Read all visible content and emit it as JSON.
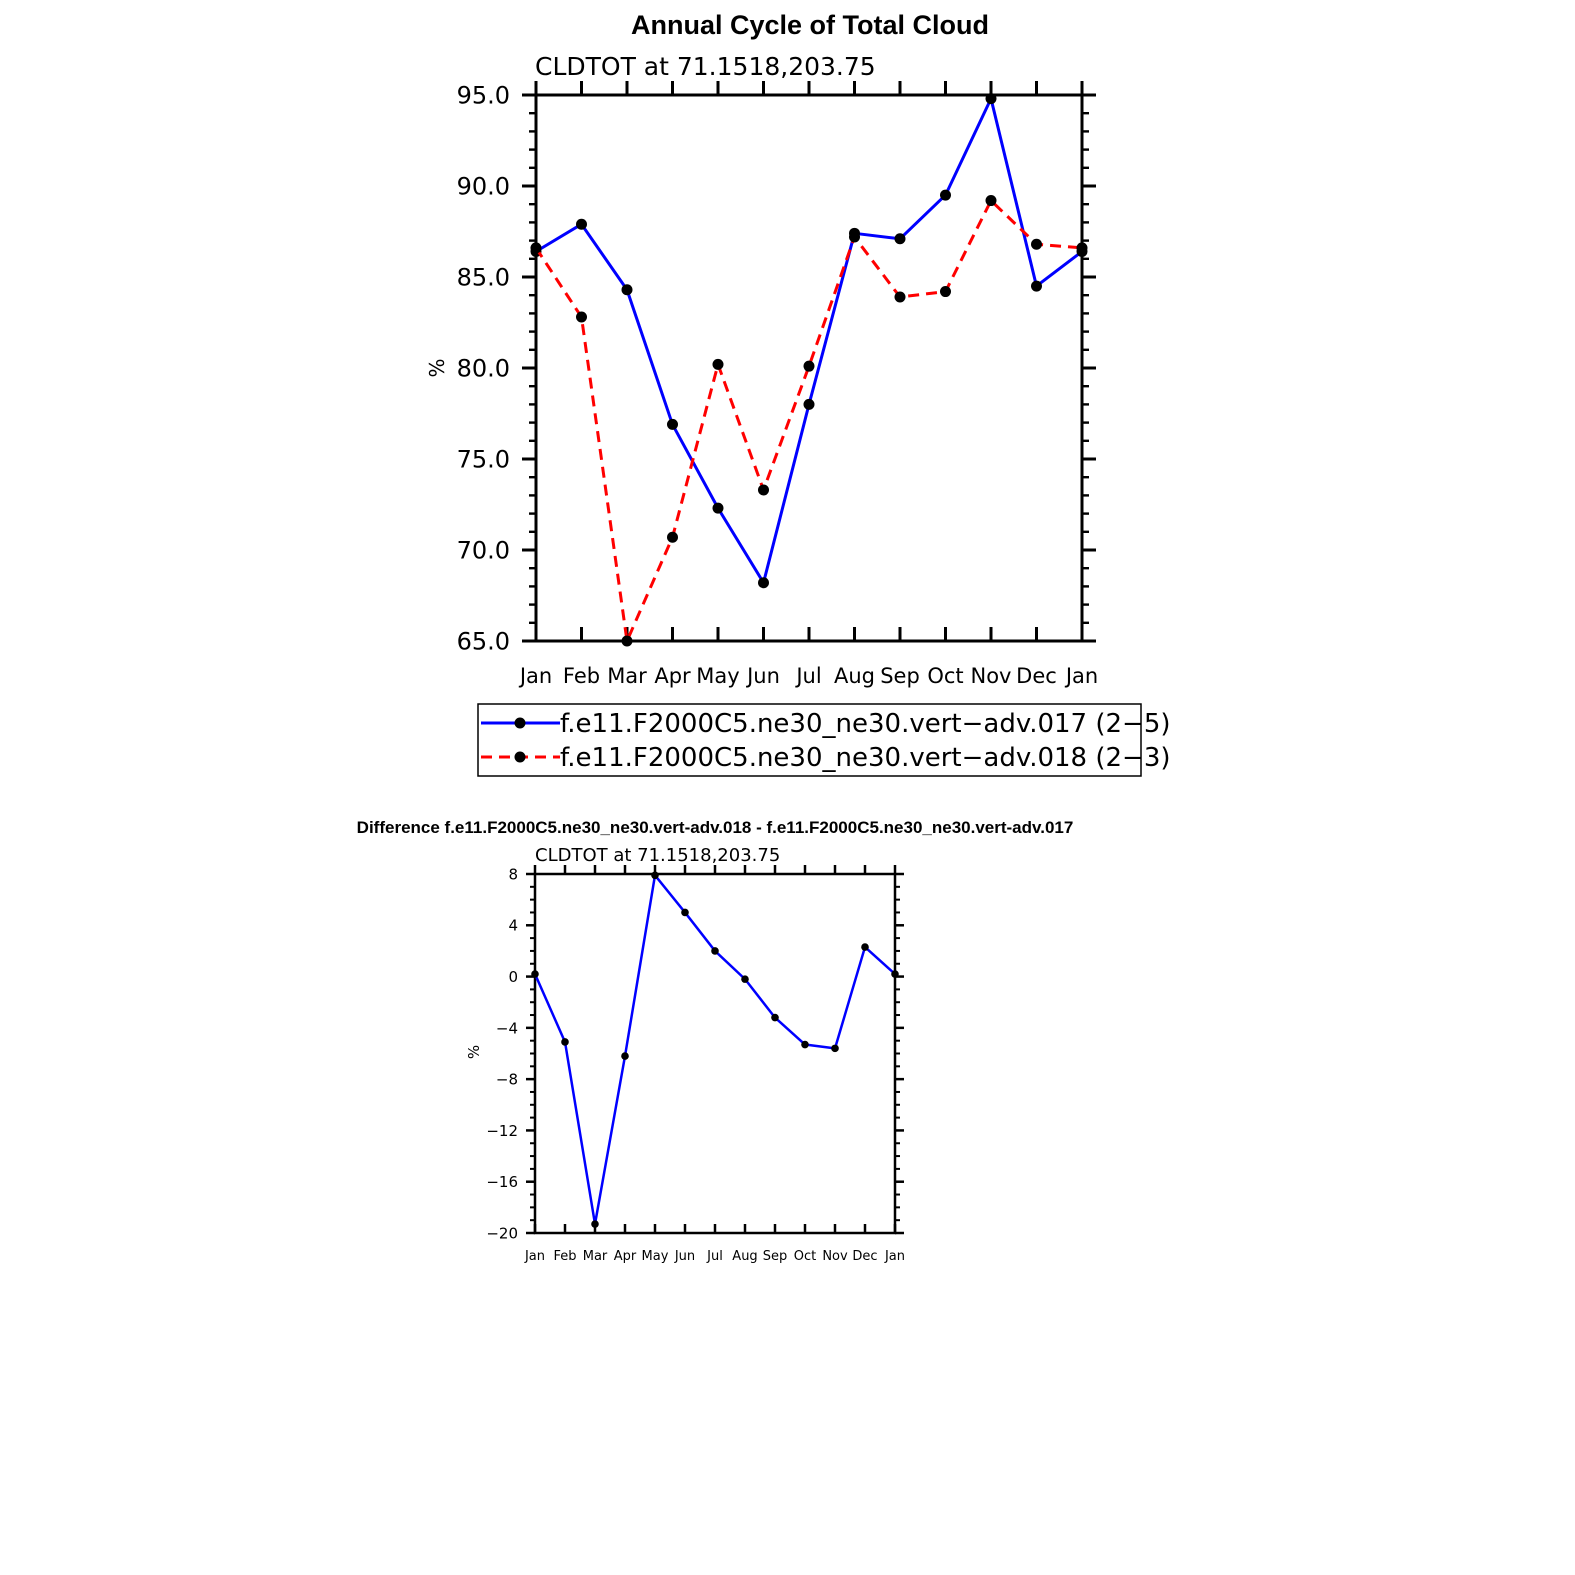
{
  "chart_data": [
    {
      "type": "line",
      "title": "Annual Cycle of Total Cloud",
      "subtitle": "CLDTOT at 71.1518,203.75",
      "xlabel": "",
      "ylabel": "%",
      "categories": [
        "Jan",
        "Feb",
        "Mar",
        "Apr",
        "May",
        "Jun",
        "Jul",
        "Aug",
        "Sep",
        "Oct",
        "Nov",
        "Dec",
        "Jan"
      ],
      "ylim": [
        65,
        95
      ],
      "yticks": [
        "65.0",
        "70.0",
        "75.0",
        "80.0",
        "85.0",
        "90.0",
        "95.0"
      ],
      "grid": false,
      "legend_position": "bottom",
      "series": [
        {
          "name": "f.e11.F2000C5.ne30_ne30.vert−adv.017 (2−5)",
          "color": "#0000ff",
          "dash": "solid",
          "values": [
            86.4,
            87.9,
            84.3,
            76.9,
            72.3,
            68.2,
            78.0,
            87.4,
            87.1,
            89.5,
            94.8,
            84.5,
            86.4
          ]
        },
        {
          "name": "f.e11.F2000C5.ne30_ne30.vert−adv.018 (2−3)",
          "color": "#ff0000",
          "dash": "dashed",
          "values": [
            86.6,
            82.8,
            65.0,
            70.7,
            80.2,
            73.3,
            80.1,
            87.2,
            83.9,
            84.2,
            89.2,
            86.8,
            86.6
          ]
        }
      ]
    },
    {
      "type": "line",
      "title": "Difference f.e11.F2000C5.ne30_ne30.vert-adv.018 - f.e11.F2000C5.ne30_ne30.vert-adv.017",
      "subtitle": "CLDTOT at 71.1518,203.75",
      "xlabel": "",
      "ylabel": "%",
      "categories": [
        "Jan",
        "Feb",
        "Mar",
        "Apr",
        "May",
        "Jun",
        "Jul",
        "Aug",
        "Sep",
        "Oct",
        "Nov",
        "Dec",
        "Jan"
      ],
      "ylim": [
        -20,
        8
      ],
      "yticks": [
        "−20",
        "−16",
        "−12",
        "−8",
        "−4",
        "0",
        "4",
        "8"
      ],
      "grid": false,
      "series": [
        {
          "color": "#0000ff",
          "dash": "solid",
          "values": [
            0.2,
            -5.1,
            -19.3,
            -6.2,
            7.9,
            5.0,
            2.0,
            -0.2,
            -3.2,
            -5.3,
            -5.6,
            2.3,
            0.2
          ]
        }
      ]
    }
  ]
}
